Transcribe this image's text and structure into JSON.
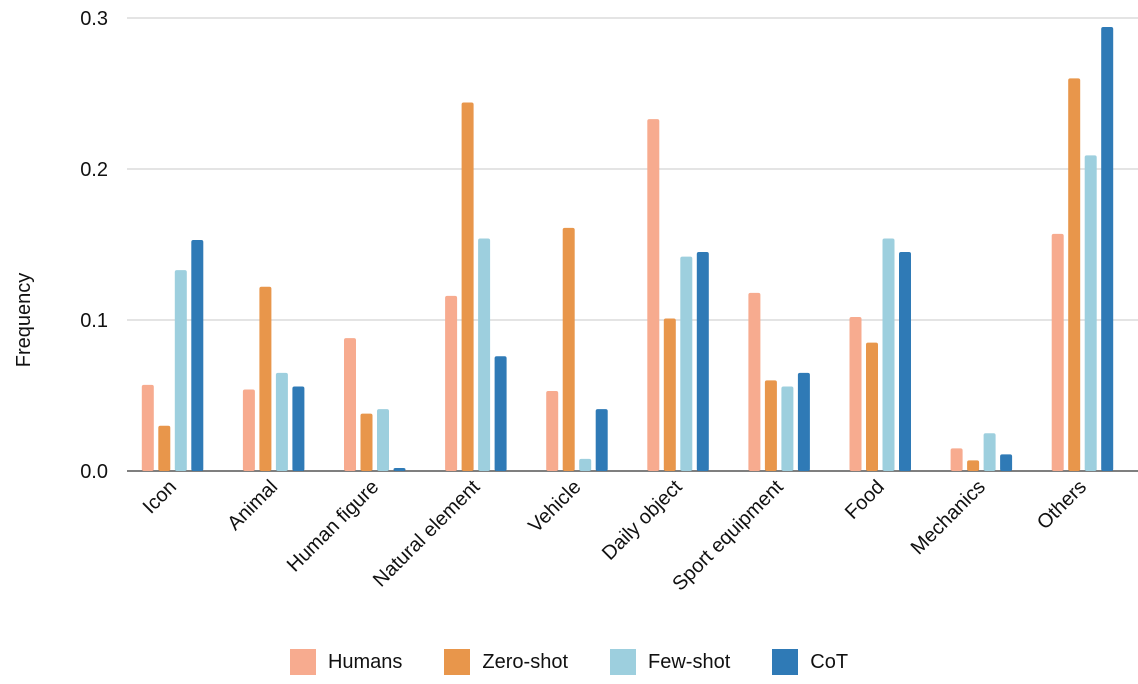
{
  "chart_data": {
    "type": "bar",
    "title": "",
    "xlabel": "",
    "ylabel": "Frequency",
    "ylim": [
      0,
      0.3
    ],
    "yticks": [
      "0.0",
      "0.1",
      "0.2",
      "0.3"
    ],
    "ytick_values": [
      0,
      0.1,
      0.2,
      0.3
    ],
    "grid": true,
    "legend_position": "bottom",
    "categories": [
      "Icon",
      "Animal",
      "Human figure",
      "Natural element",
      "Vehicle",
      "Daily object",
      "Sport equipment",
      "Food",
      "Mechanics",
      "Others"
    ],
    "series": [
      {
        "name": "Humans",
        "color": "#f7ab8f",
        "values": [
          0.057,
          0.054,
          0.088,
          0.116,
          0.053,
          0.233,
          0.118,
          0.102,
          0.015,
          0.157
        ]
      },
      {
        "name": "Zero-shot",
        "color": "#e8964b",
        "values": [
          0.03,
          0.122,
          0.038,
          0.244,
          0.161,
          0.101,
          0.06,
          0.085,
          0.007,
          0.26
        ]
      },
      {
        "name": "Few-shot",
        "color": "#9dcfde",
        "values": [
          0.133,
          0.065,
          0.041,
          0.154,
          0.008,
          0.142,
          0.056,
          0.154,
          0.025,
          0.209
        ]
      },
      {
        "name": "CoT",
        "color": "#2f7ab6",
        "values": [
          0.153,
          0.056,
          0.002,
          0.076,
          0.041,
          0.145,
          0.065,
          0.145,
          0.011,
          0.294
        ]
      }
    ]
  }
}
